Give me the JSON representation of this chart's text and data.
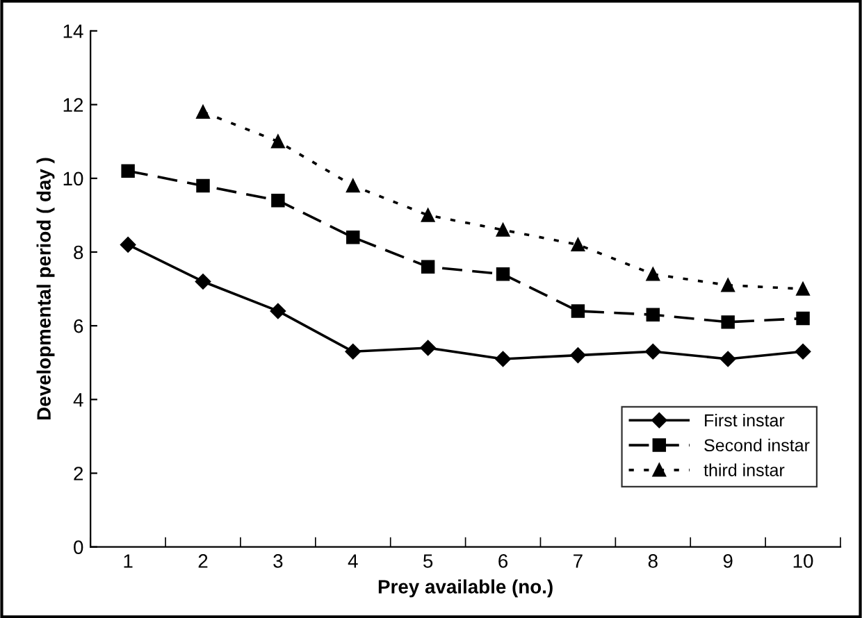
{
  "chart_data": {
    "type": "line",
    "xlabel": "Prey available (no.)",
    "ylabel": "Developmental period ( day )",
    "categories": [
      "1",
      "2",
      "3",
      "4",
      "5",
      "6",
      "7",
      "8",
      "9",
      "10"
    ],
    "ylim": [
      0,
      14
    ],
    "yticks": [
      0,
      2,
      4,
      6,
      8,
      10,
      12,
      14
    ],
    "grid": false,
    "legend": "bottom right",
    "series": [
      {
        "name": "First instar",
        "color": "#000000",
        "marker": "diamond",
        "line_style": "solid",
        "values": [
          8.2,
          7.2,
          6.4,
          5.3,
          5.4,
          5.1,
          5.2,
          5.3,
          5.1,
          5.3
        ]
      },
      {
        "name": "Second instar",
        "color": "#000000",
        "marker": "square",
        "line_style": "dashed",
        "values": [
          10.2,
          9.8,
          9.4,
          8.4,
          7.6,
          7.4,
          6.4,
          6.3,
          6.1,
          6.2
        ]
      },
      {
        "name": "third instar",
        "color": "#000000",
        "marker": "triangle",
        "line_style": "dotted",
        "values": [
          null,
          11.8,
          11.0,
          9.8,
          9.0,
          8.6,
          8.2,
          7.4,
          7.1,
          7.0
        ]
      }
    ]
  }
}
